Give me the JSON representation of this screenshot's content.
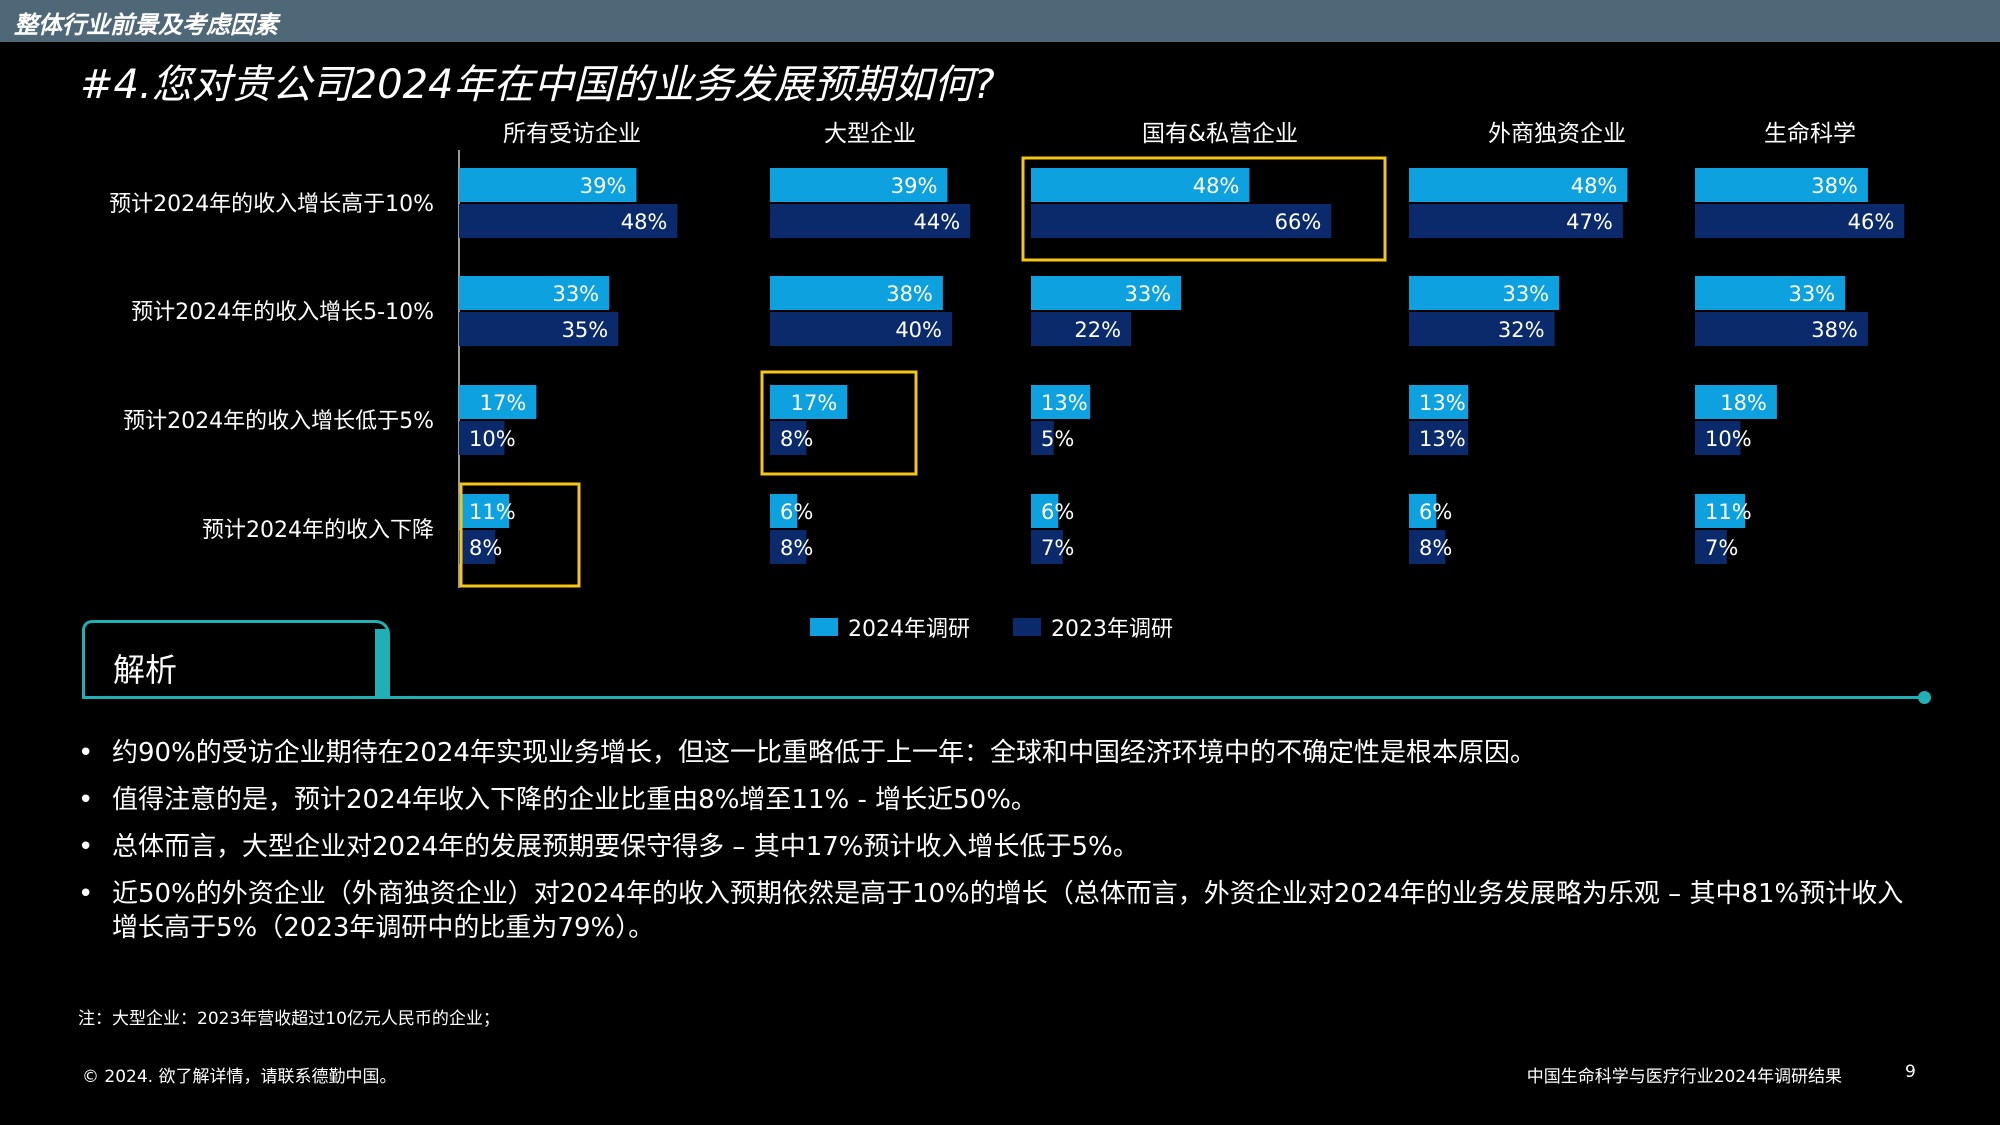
{
  "header": {
    "section": "整体行业前景及考虑因素"
  },
  "title": "#4.您对贵公司2024年在中国的业务发展预期如何?",
  "chart_data": {
    "type": "bar",
    "orientation": "horizontal",
    "groups": [
      "所有受访企业",
      "大型企业",
      "国有&私营企业",
      "外商独资企业",
      "生命科学"
    ],
    "categories": [
      "预计2024年的收入增长高于10%",
      "预计2024年的收入增长5-10%",
      "预计2024年的收入增长低于5%",
      "预计2024年的收入下降"
    ],
    "series": [
      {
        "name": "2024年调研",
        "color": "#0ea1e0",
        "values": [
          [
            39,
            33,
            17,
            11
          ],
          [
            39,
            38,
            17,
            6
          ],
          [
            48,
            33,
            13,
            6
          ],
          [
            48,
            33,
            13,
            6
          ],
          [
            38,
            33,
            18,
            11
          ]
        ],
        "labels": [
          [
            "39%",
            "33%",
            "17%",
            "11%"
          ],
          [
            "39%",
            "38%",
            "17%",
            "6%"
          ],
          [
            "48%",
            "33%",
            "13%",
            "6%"
          ],
          [
            "48%",
            "33%",
            "13%",
            "6%"
          ],
          [
            "38%",
            "33%",
            "18%",
            "11%"
          ]
        ]
      },
      {
        "name": "2023年调研",
        "color": "#0b2a6b",
        "values": [
          [
            48,
            35,
            10,
            8
          ],
          [
            44,
            40,
            8,
            8
          ],
          [
            66,
            22,
            5,
            7
          ],
          [
            47,
            32,
            13,
            8
          ],
          [
            46,
            38,
            10,
            7
          ]
        ],
        "labels": [
          [
            "48%",
            "35%",
            "10%",
            "8%"
          ],
          [
            "44%",
            "40%",
            "8%",
            "8%"
          ],
          [
            "66%",
            "22%",
            "5%",
            "7%"
          ],
          [
            "47%",
            "32%",
            "13%",
            "8%"
          ],
          [
            "46%",
            "38%",
            "10%",
            "7%"
          ]
        ]
      }
    ],
    "highlights": [
      {
        "group": 0,
        "category": 3
      },
      {
        "group": 1,
        "category": 2
      },
      {
        "group": 2,
        "category": 0
      }
    ],
    "highlight_color": "#f5c518",
    "legend_position": "bottom-center",
    "grid": false
  },
  "analysis": {
    "heading": "解析",
    "bullets": [
      "约90%的受访企业期待在2024年实现业务增长，但这一比重略低于上一年：全球和中国经济环境中的不确定性是根本原因。",
      "值得注意的是，预计2024年收入下降的企业比重由8%增至11% - 增长近50%。",
      "总体而言，大型企业对2024年的发展预期要保守得多 – 其中17%预计收入增长低于5%。",
      "近50%的外资企业（外商独资企业）对2024年的收入预期依然是高于10%的增长（总体而言，外资企业对2024年的业务发展略为乐观 – 其中81%预计收入增长高于5%（2023年调研中的比重为79%）。"
    ]
  },
  "note": "注：大型企业：2023年营收超过10亿元人民币的企业；",
  "footer": {
    "copyright": "© 2024. 欲了解详情，请联系德勤中国。",
    "report_title": "中国生命科学与医疗行业2024年调研结果",
    "page": "9"
  }
}
